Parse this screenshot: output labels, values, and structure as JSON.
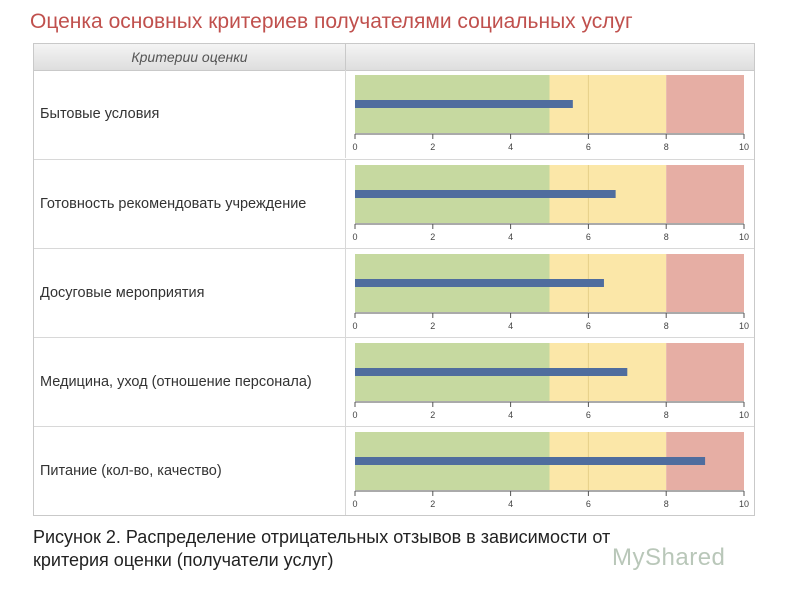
{
  "title": "Оценка основных критериев получателями социальных услуг",
  "header_label": "Критерии оценки",
  "caption_line1": "Рисунок 2.  Распределение отрицательных отзывов в зависимости от",
  "caption_line2": "критерия оценки (получатели услуг)",
  "watermark": "MyShared",
  "colors": {
    "zone_green": "#c6d9a0",
    "zone_yellow": "#fbe7a8",
    "zone_red": "#e6aea4",
    "bar": "#4f6d9e",
    "title": "#c0504d"
  },
  "chart_data": {
    "type": "bar",
    "orientation": "horizontal",
    "style": "bullet",
    "categories": [
      "Бытовые условия",
      "Готовность рекомендовать учреждение",
      "Досуговые мероприятия",
      "Медицина, уход (отношение персонала)",
      "Питание (кол-во, качество)"
    ],
    "values": [
      5.6,
      6.7,
      6.4,
      7.0,
      9.0
    ],
    "ranges": [
      {
        "from": 0,
        "to": 5,
        "color": "#c6d9a0"
      },
      {
        "from": 5,
        "to": 8,
        "color": "#fbe7a8"
      },
      {
        "from": 8,
        "to": 10,
        "color": "#e6aea4"
      }
    ],
    "xlim": [
      0,
      10
    ],
    "ticks": [
      "0",
      "2",
      "4",
      "6",
      "8",
      "10"
    ],
    "title": "Оценка основных критериев получателями социальных услуг",
    "xlabel": "",
    "ylabel": ""
  }
}
